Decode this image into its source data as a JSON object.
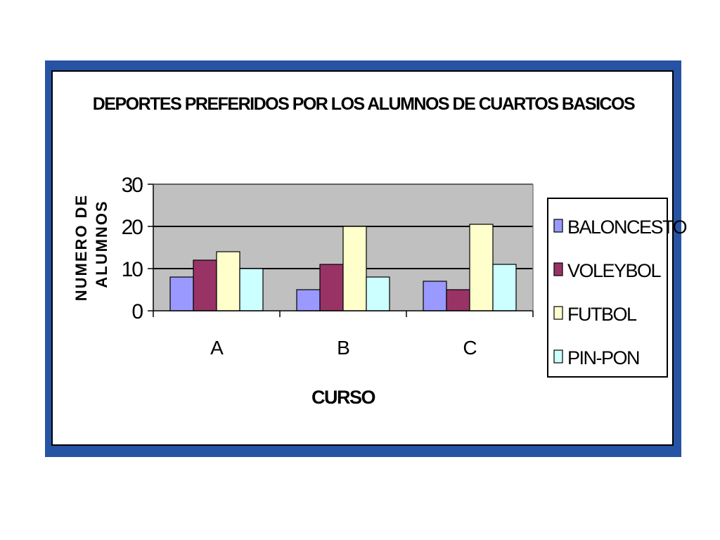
{
  "chart_data": {
    "type": "bar",
    "title": "DEPORTES PREFERIDOS POR LOS ALUMNOS DE CUARTOS BASICOS",
    "xlabel": "CURSO",
    "ylabel_lines": [
      "NUMERO DE",
      "ALUMNOS"
    ],
    "categories": [
      "A",
      "B",
      "C"
    ],
    "ylim": [
      0,
      30
    ],
    "yticks": [
      0,
      10,
      20,
      30
    ],
    "grid": true,
    "legend_position": "right",
    "series": [
      {
        "name": "BALONCESTO",
        "values": [
          8,
          5,
          7
        ],
        "color": "#9999ff"
      },
      {
        "name": "VOLEYBOL",
        "values": [
          12,
          11,
          5
        ],
        "color": "#993366"
      },
      {
        "name": "FUTBOL",
        "values": [
          14,
          20,
          20.5
        ],
        "color": "#ffffcc"
      },
      {
        "name": "PIN-PON",
        "values": [
          10,
          8,
          11
        ],
        "color": "#ccffff"
      }
    ],
    "plot_background": "#c0c0c0",
    "frame_color": "#2653a3"
  }
}
